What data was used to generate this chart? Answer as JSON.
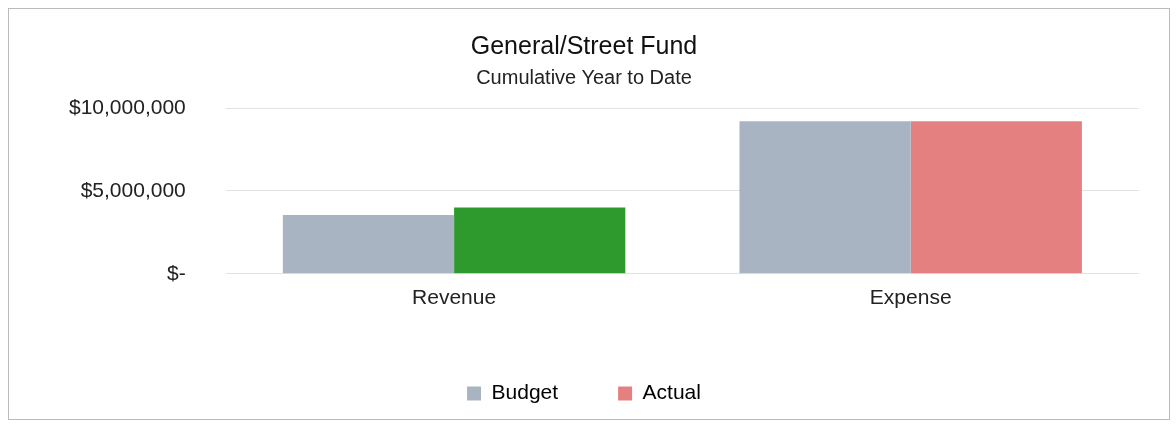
{
  "chart_data": {
    "type": "bar",
    "title": "General/Street Fund",
    "subtitle": "Cumulative Year to Date",
    "categories": [
      "Revenue",
      "Expense"
    ],
    "series": [
      {
        "name": "Budget",
        "color": "#a9b4c2",
        "colors": [
          "#a9b4c2",
          "#a9b4c2"
        ],
        "values": [
          3550000,
          9200000
        ]
      },
      {
        "name": "Actual",
        "color": "#e48080",
        "colors": [
          "#2e9a2e",
          "#e48080"
        ],
        "values": [
          4000000,
          9200000
        ]
      }
    ],
    "ylim": [
      0,
      10000000
    ],
    "yticks": [
      {
        "value": 0,
        "label": "$-"
      },
      {
        "value": 5000000,
        "label": "$5,000,000"
      },
      {
        "value": 10000000,
        "label": "$10,000,000"
      }
    ],
    "grid": "y",
    "legend": "bottom"
  }
}
